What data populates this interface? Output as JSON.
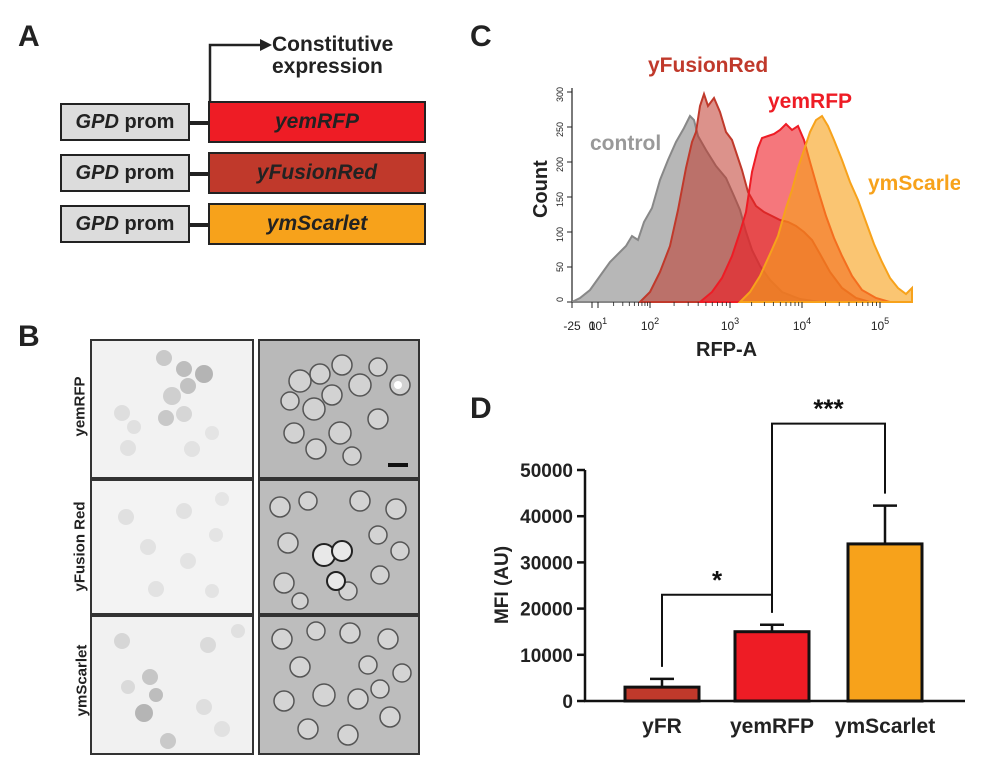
{
  "panels": {
    "a": "A",
    "b": "B",
    "c": "C",
    "d": "D"
  },
  "panel_a": {
    "arrow_label_line1": "Constitutive",
    "arrow_label_line2": "expression",
    "constructs": [
      {
        "promoter_italic": "GPD",
        "promoter_rest": " prom",
        "gene": "yemRFP",
        "color": "#ee1c25"
      },
      {
        "promoter_italic": "GPD",
        "promoter_rest": " prom",
        "gene": "yFusionRed",
        "color": "#c0392b"
      },
      {
        "promoter_italic": "GPD",
        "promoter_rest": " prom",
        "gene": "ymScarlet",
        "color": "#f7a21b"
      }
    ]
  },
  "panel_b": {
    "rows": [
      "yemRFP",
      "yFusion Red",
      "ymScarlet"
    ]
  },
  "panel_c": {
    "ylabel": "Count",
    "xlabel": "RFP-A",
    "yticks": [
      "0",
      "50",
      "100",
      "150",
      "200",
      "250",
      "300"
    ],
    "xticks": [
      "-25",
      "0",
      "10",
      "10",
      "10",
      "10",
      "10"
    ],
    "xtick_exps": [
      "",
      "",
      "1",
      "2",
      "3",
      "4",
      "5"
    ],
    "labels": {
      "control": "control",
      "yFusionRed": "yFusionRed",
      "yemRFP": "yemRFP",
      "ymScarlet": "ymScarlet"
    },
    "colors": {
      "control": "#999999",
      "yFusionRed": "#c0392b",
      "yemRFP": "#ee1c25",
      "ymScarlet": "#f7a21b"
    }
  },
  "chart_data": {
    "type": "bar",
    "title": "",
    "xlabel": "",
    "ylabel": "MFI (AU)",
    "ylim": [
      0,
      50000
    ],
    "yticks": [
      0,
      10000,
      20000,
      30000,
      40000,
      50000
    ],
    "categories": [
      "yFR",
      "yemRFP",
      "ymScarlet"
    ],
    "values": [
      3000,
      15000,
      34000
    ],
    "errors": [
      1800,
      1500,
      8300
    ],
    "colors": [
      "#c0392b",
      "#ee1c25",
      "#f7a21b"
    ],
    "significance": [
      {
        "from": "yFR",
        "to": "yemRFP",
        "label": "*"
      },
      {
        "from": "yemRFP",
        "to": "ymScarlet",
        "label": "***"
      }
    ]
  }
}
